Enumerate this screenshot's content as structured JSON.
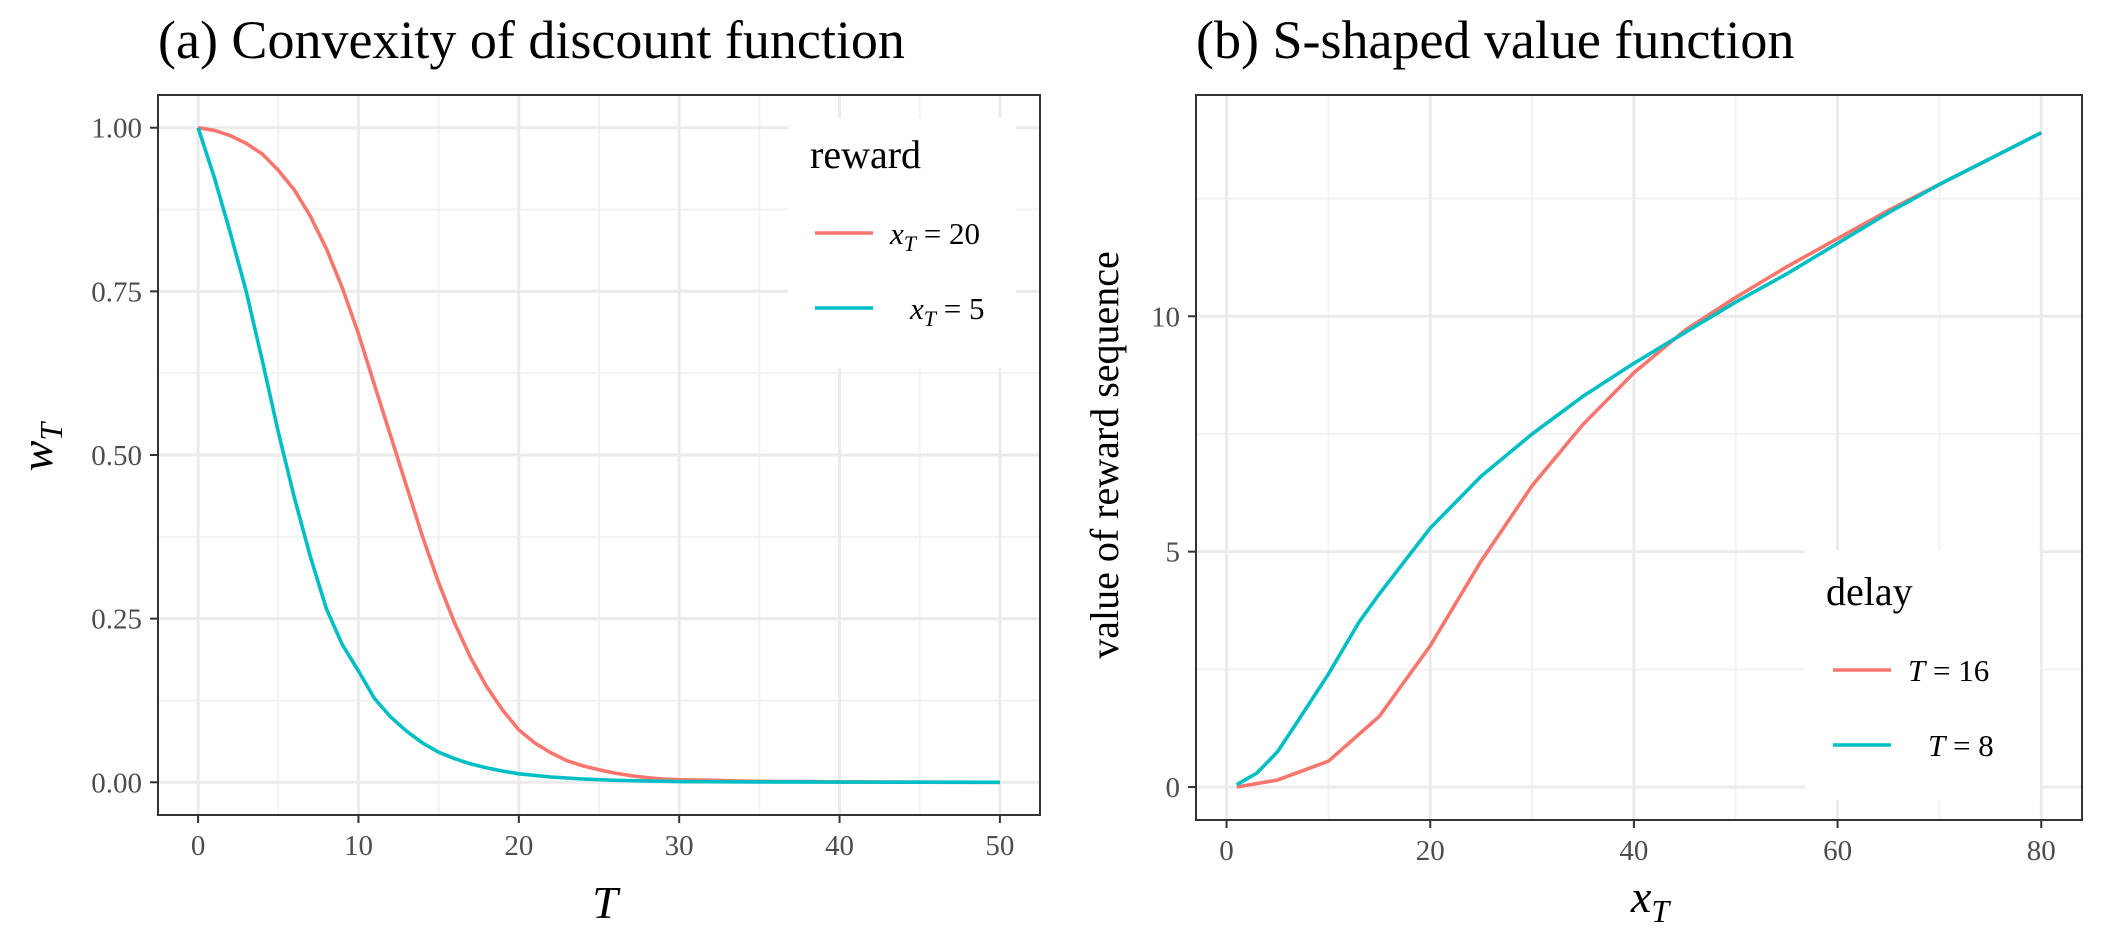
{
  "chart_data": [
    {
      "type": "line",
      "title": "(a) Convexity of discount function",
      "xlabel": "T",
      "ylabel": "w_T",
      "xlim": [
        -2.5,
        52.5
      ],
      "ylim": [
        -0.05,
        1.05
      ],
      "xticks": [
        0,
        10,
        20,
        30,
        40,
        50
      ],
      "xtick_labels": [
        "0",
        "10",
        "20",
        "30",
        "40",
        "50"
      ],
      "yticks": [
        0,
        0.25,
        0.5,
        0.75,
        1
      ],
      "ytick_labels": [
        "0.00",
        "0.25",
        "0.50",
        "0.75",
        "1.00"
      ],
      "grid": true,
      "legend": {
        "title": "reward",
        "position": "top-right"
      },
      "series": [
        {
          "name": "x_T = 20",
          "legend_var": "x",
          "legend_sub": "T",
          "legend_rest": " = 20",
          "color": "#F8766D",
          "x": [
            0,
            1,
            2,
            3,
            4,
            5,
            6,
            7,
            8,
            9,
            10,
            11,
            12,
            13,
            14,
            15,
            16,
            17,
            18,
            19,
            20,
            21,
            22,
            23,
            24,
            25,
            26,
            27,
            28,
            29,
            30,
            32,
            34,
            36,
            38,
            40,
            45,
            50
          ],
          "y": [
            1.0,
            0.996,
            0.988,
            0.976,
            0.96,
            0.935,
            0.905,
            0.865,
            0.815,
            0.755,
            0.685,
            0.607,
            0.53,
            0.452,
            0.375,
            0.305,
            0.243,
            0.19,
            0.146,
            0.11,
            0.08,
            0.06,
            0.045,
            0.033,
            0.025,
            0.019,
            0.014,
            0.01,
            0.007,
            0.005,
            0.004,
            0.003,
            0.002,
            0.001,
            0.001,
            0.0005,
            0.0001,
            0.0
          ]
        },
        {
          "name": "x_T = 5",
          "legend_var": "x",
          "legend_sub": "T",
          "legend_rest": " = 5",
          "color": "#00BFC4",
          "x": [
            0,
            1,
            2,
            3,
            4,
            5,
            6,
            7,
            8,
            9,
            10,
            11,
            12,
            13,
            14,
            15,
            16,
            17,
            18,
            19,
            20,
            22,
            24,
            26,
            28,
            30,
            35,
            40,
            45,
            50
          ],
          "y": [
            1.0,
            0.925,
            0.84,
            0.75,
            0.645,
            0.535,
            0.435,
            0.345,
            0.265,
            0.21,
            0.17,
            0.128,
            0.1,
            0.078,
            0.06,
            0.046,
            0.036,
            0.028,
            0.022,
            0.017,
            0.013,
            0.008,
            0.005,
            0.003,
            0.002,
            0.001,
            0.0005,
            0.0002,
            0.0001,
            0.0
          ]
        }
      ]
    },
    {
      "type": "line",
      "title": "(b) S-shaped value function",
      "xlabel": "x_T",
      "ylabel": "value of reward sequence",
      "xlim": [
        -3,
        84
      ],
      "ylim": [
        -0.7,
        14.7
      ],
      "xticks": [
        0,
        20,
        40,
        60,
        80
      ],
      "xtick_labels": [
        "0",
        "20",
        "40",
        "60",
        "80"
      ],
      "yticks": [
        0,
        5,
        10
      ],
      "ytick_labels": [
        "0",
        "5",
        "10"
      ],
      "grid": true,
      "legend": {
        "title": "delay",
        "position": "bottom-right"
      },
      "series": [
        {
          "name": "T = 16",
          "legend_var": "T",
          "legend_sub": "",
          "legend_rest": " = 16",
          "color": "#F8766D",
          "x": [
            1,
            5,
            10,
            15,
            20,
            25,
            30,
            35,
            40,
            45,
            50,
            55,
            60,
            65,
            70,
            75,
            80
          ],
          "y": [
            0.0,
            0.15,
            0.55,
            1.5,
            3.0,
            4.8,
            6.4,
            7.7,
            8.8,
            9.7,
            10.4,
            11.05,
            11.65,
            12.25,
            12.8,
            13.35,
            13.9
          ]
        },
        {
          "name": "T = 8",
          "legend_var": "T",
          "legend_sub": "",
          "legend_rest": " = 8",
          "color": "#00BFC4",
          "x": [
            1,
            3,
            5,
            7,
            10,
            13,
            15,
            20,
            25,
            30,
            35,
            40,
            45,
            50,
            55,
            60,
            65,
            70,
            75,
            80
          ],
          "y": [
            0.05,
            0.3,
            0.75,
            1.4,
            2.4,
            3.5,
            4.1,
            5.5,
            6.6,
            7.5,
            8.3,
            9.0,
            9.65,
            10.3,
            10.9,
            11.55,
            12.2,
            12.8,
            13.35,
            13.9
          ]
        }
      ]
    }
  ]
}
